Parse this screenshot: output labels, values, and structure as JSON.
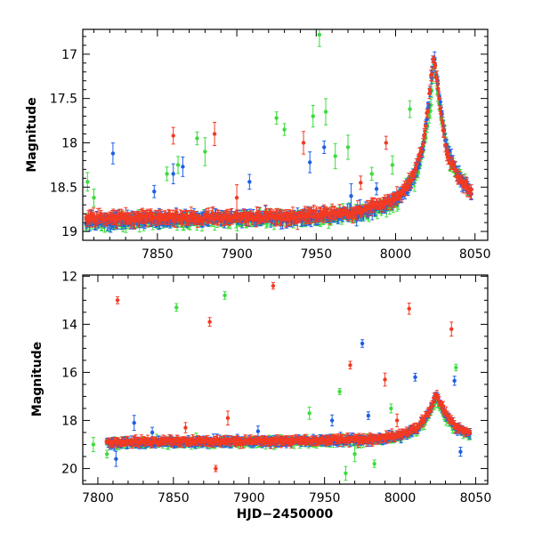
{
  "chart_data": [
    {
      "type": "scatter",
      "title": "",
      "xlabel": "",
      "ylabel": "Magnitude",
      "xlim": [
        7803,
        8058
      ],
      "ylim": [
        19.1,
        16.72
      ],
      "y_inverted": true,
      "xticks": [
        7850,
        7900,
        7950,
        8000,
        8050
      ],
      "yticks": [
        17,
        17.5,
        18,
        18.5,
        19
      ],
      "xtick_labels": [
        "7850",
        "7900",
        "7950",
        "8000",
        "8050"
      ],
      "ytick_labels": [
        "17",
        "17.5",
        "18",
        "18.5",
        "19"
      ],
      "grid": false,
      "legend": null,
      "series_colors": {
        "blue": "#1f5fe6",
        "red": "#f23a23",
        "green": "#3ddc3d"
      },
      "series": [
        {
          "color": "blue",
          "baseline": [
            [
              7805,
              18.88
            ],
            [
              7850,
              18.86
            ],
            [
              7900,
              18.85
            ],
            [
              7950,
              18.84
            ],
            [
              7975,
              18.8
            ],
            [
              8000,
              18.65
            ],
            [
              8010,
              18.45
            ],
            [
              8017,
              18.1
            ],
            [
              8021,
              17.55
            ],
            [
              8024,
              17.0
            ],
            [
              8027,
              17.4
            ],
            [
              8032,
              18.05
            ],
            [
              8040,
              18.4
            ],
            [
              8048,
              18.55
            ]
          ],
          "outliers": [
            [
              7822,
              18.12
            ],
            [
              7848,
              18.55
            ],
            [
              7860,
              18.35
            ],
            [
              7866,
              18.27
            ],
            [
              7908,
              18.44
            ],
            [
              7946,
              18.22
            ],
            [
              7955,
              18.05
            ],
            [
              7972,
              18.6
            ],
            [
              7988,
              18.52
            ],
            [
              8040,
              18.35
            ]
          ]
        },
        {
          "color": "red",
          "baseline": [
            [
              7805,
              18.85
            ],
            [
              7850,
              18.84
            ],
            [
              7900,
              18.84
            ],
            [
              7950,
              18.82
            ],
            [
              7975,
              18.78
            ],
            [
              8000,
              18.63
            ],
            [
              8010,
              18.42
            ],
            [
              8017,
              18.08
            ],
            [
              8021,
              17.5
            ],
            [
              8024,
              17.02
            ],
            [
              8027,
              17.45
            ],
            [
              8032,
              18.1
            ],
            [
              8040,
              18.42
            ],
            [
              8048,
              18.57
            ]
          ],
          "outliers": [
            [
              7860,
              17.92
            ],
            [
              7886,
              17.9
            ],
            [
              7900,
              18.62
            ],
            [
              7942,
              18.0
            ],
            [
              7978,
              18.45
            ],
            [
              7994,
              18.0
            ]
          ]
        },
        {
          "color": "green",
          "baseline": [
            [
              7805,
              18.9
            ],
            [
              7850,
              18.88
            ],
            [
              7900,
              18.87
            ],
            [
              7950,
              18.85
            ],
            [
              7980,
              18.8
            ],
            [
              8000,
              18.68
            ],
            [
              8015,
              18.3
            ],
            [
              8022,
              17.6
            ],
            [
              8024,
              17.12
            ],
            [
              8028,
              17.6
            ],
            [
              8034,
              18.2
            ],
            [
              8045,
              18.5
            ]
          ],
          "outliers": [
            [
              7806,
              18.44
            ],
            [
              7810,
              18.62
            ],
            [
              7856,
              18.35
            ],
            [
              7863,
              18.25
            ],
            [
              7875,
              17.95
            ],
            [
              7880,
              18.1
            ],
            [
              7925,
              17.72
            ],
            [
              7930,
              17.85
            ],
            [
              7948,
              17.7
            ],
            [
              7952,
              16.78
            ],
            [
              7956,
              17.65
            ],
            [
              7962,
              18.15
            ],
            [
              7970,
              18.05
            ],
            [
              7985,
              18.35
            ],
            [
              7998,
              18.25
            ],
            [
              8009,
              17.62
            ],
            [
              8012,
              18.4
            ]
          ]
        }
      ]
    },
    {
      "type": "scatter",
      "title": "",
      "xlabel": "HJD−2450000",
      "ylabel": "Magnitude",
      "xlim": [
        7790,
        8058
      ],
      "ylim": [
        20.65,
        11.95
      ],
      "y_inverted": true,
      "xticks": [
        7800,
        7850,
        7900,
        7950,
        8000,
        8050
      ],
      "yticks": [
        12,
        14,
        16,
        18,
        20
      ],
      "xtick_labels": [
        "7800",
        "7850",
        "7900",
        "7950",
        "8000",
        "8050"
      ],
      "ytick_labels": [
        "12",
        "14",
        "16",
        "18",
        "20"
      ],
      "grid": false,
      "legend": null,
      "series_colors": {
        "blue": "#1f5fe6",
        "red": "#f23a23",
        "green": "#3ddc3d"
      },
      "series": [
        {
          "color": "blue",
          "baseline": [
            [
              7806,
              18.95
            ],
            [
              7850,
              18.9
            ],
            [
              7900,
              18.88
            ],
            [
              7950,
              18.85
            ],
            [
              7980,
              18.8
            ],
            [
              8000,
              18.65
            ],
            [
              8012,
              18.3
            ],
            [
              8019,
              17.7
            ],
            [
              8024,
              16.95
            ],
            [
              8029,
              17.6
            ],
            [
              8036,
              18.25
            ],
            [
              8046,
              18.55
            ]
          ],
          "outliers": [
            [
              7812,
              19.6
            ],
            [
              7824,
              18.1
            ],
            [
              7836,
              18.5
            ],
            [
              7906,
              18.45
            ],
            [
              7955,
              18.0
            ],
            [
              7975,
              14.8
            ],
            [
              7979,
              17.8
            ],
            [
              8010,
              16.2
            ],
            [
              8036,
              16.35
            ],
            [
              8040,
              19.3
            ]
          ]
        },
        {
          "color": "red",
          "baseline": [
            [
              7806,
              18.9
            ],
            [
              7850,
              18.88
            ],
            [
              7900,
              18.86
            ],
            [
              7950,
              18.83
            ],
            [
              7980,
              18.78
            ],
            [
              8000,
              18.62
            ],
            [
              8012,
              18.25
            ],
            [
              8019,
              17.65
            ],
            [
              8024,
              16.95
            ],
            [
              8029,
              17.55
            ],
            [
              8036,
              18.2
            ],
            [
              8046,
              18.52
            ]
          ],
          "outliers": [
            [
              7813,
              13.0
            ],
            [
              7858,
              18.3
            ],
            [
              7874,
              13.9
            ],
            [
              7878,
              20.0
            ],
            [
              7886,
              17.9
            ],
            [
              7916,
              12.4
            ],
            [
              7928,
              19.0
            ],
            [
              7967,
              15.7
            ],
            [
              7990,
              16.3
            ],
            [
              7998,
              18.0
            ],
            [
              8006,
              13.35
            ],
            [
              8034,
              14.2
            ]
          ]
        },
        {
          "color": "green",
          "baseline": [
            [
              7806,
              18.95
            ],
            [
              7850,
              18.92
            ],
            [
              7900,
              18.9
            ],
            [
              7950,
              18.88
            ],
            [
              7980,
              18.82
            ],
            [
              8000,
              18.7
            ],
            [
              8012,
              18.35
            ],
            [
              8019,
              17.8
            ],
            [
              8024,
              17.1
            ],
            [
              8029,
              17.8
            ],
            [
              8036,
              18.35
            ],
            [
              8046,
              18.6
            ]
          ],
          "outliers": [
            [
              7797,
              19.0
            ],
            [
              7806,
              19.4
            ],
            [
              7852,
              13.3
            ],
            [
              7865,
              18.8
            ],
            [
              7884,
              12.8
            ],
            [
              7940,
              17.7
            ],
            [
              7960,
              16.8
            ],
            [
              7964,
              20.2
            ],
            [
              7970,
              19.4
            ],
            [
              7983,
              19.8
            ],
            [
              7994,
              17.5
            ],
            [
              8037,
              15.8
            ]
          ]
        }
      ]
    }
  ]
}
